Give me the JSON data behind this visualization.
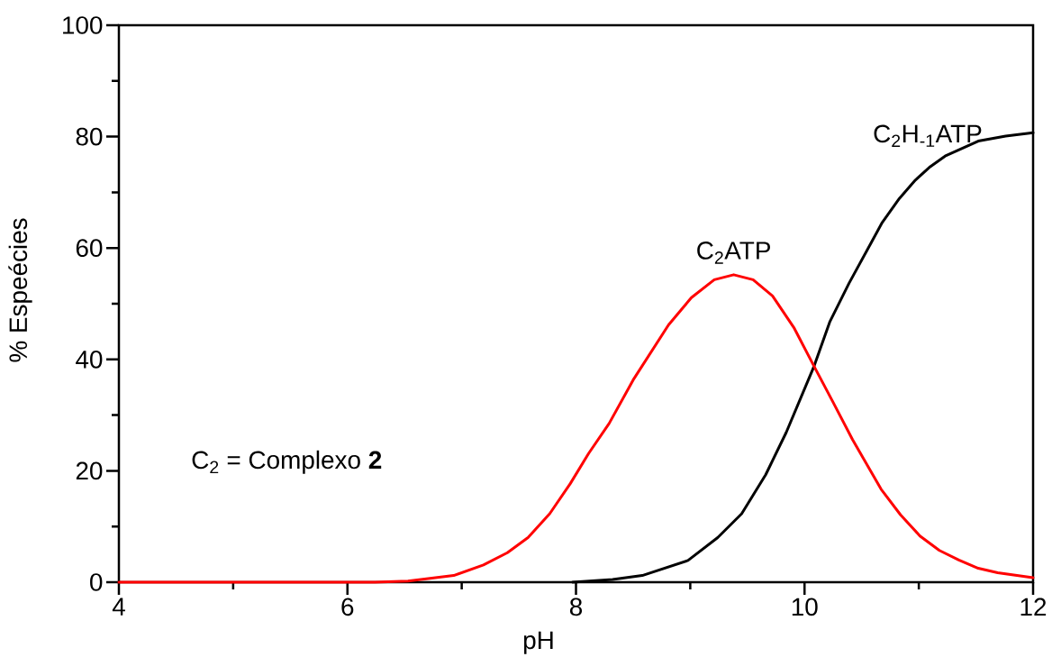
{
  "chart_data": {
    "type": "line",
    "xlabel": "pH",
    "ylabel": "% Espeécies",
    "xlim": [
      4,
      12
    ],
    "ylim": [
      0,
      100
    ],
    "xticks": [
      4,
      {
        "value": 5,
        "label": null
      },
      6,
      {
        "value": 7,
        "label": null
      },
      8,
      {
        "value": 9,
        "label": null
      },
      10,
      {
        "value": 11,
        "label": null
      },
      12
    ],
    "yticks": [
      0,
      {
        "value": 10,
        "label": null
      },
      20,
      {
        "value": 30,
        "label": null
      },
      40,
      {
        "value": 50,
        "label": null
      },
      60,
      {
        "value": 70,
        "label": null
      },
      80,
      {
        "value": 90,
        "label": null
      },
      100
    ],
    "series": [
      {
        "name": "C$_{2}$H$_{-1}$ATP",
        "color": "#000000",
        "x": [
          7.97,
          8.32,
          8.58,
          8.98,
          9.24,
          9.45,
          9.66,
          9.84,
          10.08,
          10.22,
          10.39,
          10.59,
          10.68,
          10.83,
          10.97,
          11.1,
          11.23,
          11.52,
          11.76,
          12
        ],
        "values": [
          0,
          0.5,
          1.2,
          3.9,
          8.0,
          12.3,
          19.3,
          26.9,
          38.6,
          46.7,
          53.7,
          61.2,
          64.6,
          68.9,
          72.2,
          74.6,
          76.5,
          79.2,
          80.1,
          80.7
        ]
      },
      {
        "name": "C$_{2}$ATP",
        "color": "#ff0000",
        "x": [
          4,
          5,
          6,
          6.24,
          6.53,
          6.93,
          7.19,
          7.4,
          7.58,
          7.77,
          7.95,
          8.11,
          8.29,
          8.5,
          8.81,
          9.01,
          9.21,
          9.38,
          9.55,
          9.72,
          9.91,
          10.08,
          10.25,
          10.42,
          10.67,
          10.84,
          11.01,
          11.18,
          11.35,
          11.52,
          11.69,
          12
        ],
        "values": [
          0,
          0,
          0,
          0,
          0.2,
          1.2,
          3.1,
          5.3,
          8.0,
          12.3,
          17.7,
          23.1,
          28.5,
          36.3,
          46.2,
          51.1,
          54.3,
          55.2,
          54.3,
          51.4,
          45.6,
          38.9,
          32.3,
          25.6,
          16.7,
          12.1,
          8.3,
          5.7,
          4.0,
          2.5,
          1.7,
          0.8
        ]
      }
    ],
    "annotations": [
      "C$_{2}$ = Complexo **2**"
    ]
  }
}
